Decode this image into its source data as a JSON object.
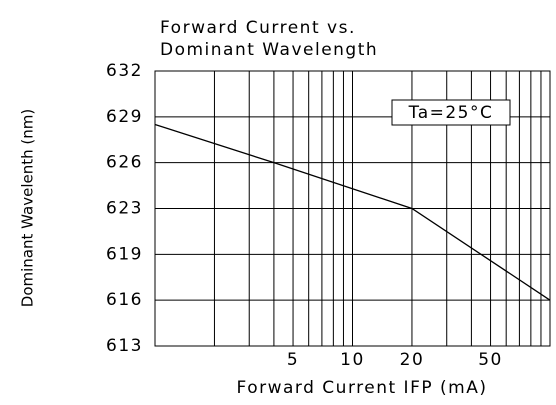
{
  "chart_data": {
    "type": "line",
    "title": [
      "Forward Current vs.",
      "Dominant Wavelength"
    ],
    "x_label": "Forward Current IFP (mA)",
    "y_label": "Dominant Wavelenth (nm)",
    "annotation": "Ta=25°C",
    "x": [
      1,
      4,
      20,
      100
    ],
    "series": [
      {
        "name": "Dominant Wavelength",
        "color": "#000000",
        "values": [
          628.5,
          626,
          623,
          616
        ]
      }
    ],
    "xlim": [
      1,
      100
    ],
    "xscale": "log",
    "xticks": [
      5,
      10,
      20,
      50
    ],
    "xgrid": [
      2,
      3,
      4,
      5,
      6,
      7,
      8,
      9,
      10,
      20,
      30,
      40,
      50,
      60,
      70,
      80,
      90
    ],
    "ylim": [
      613,
      632
    ],
    "yticks": [
      613,
      616,
      619,
      623,
      626,
      629,
      632
    ],
    "grid": true
  }
}
